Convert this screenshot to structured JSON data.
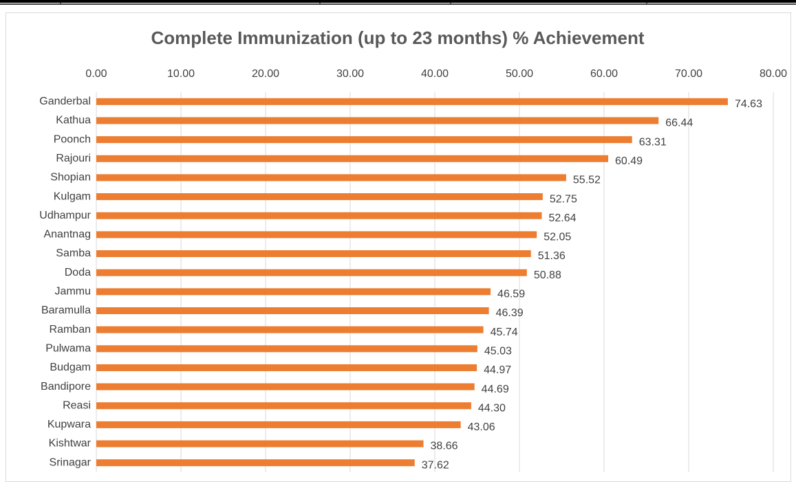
{
  "chart_data": {
    "type": "bar",
    "orientation": "horizontal",
    "title": "Complete Immunization  (up to 23 months) % Achievement",
    "categories": [
      "Ganderbal",
      "Kathua",
      "Poonch",
      "Rajouri",
      "Shopian",
      "Kulgam",
      "Udhampur",
      "Anantnag",
      "Samba",
      "Doda",
      "Jammu",
      "Baramulla",
      "Ramban",
      "Pulwama",
      "Budgam",
      "Bandipore",
      "Reasi",
      "Kupwara",
      "Kishtwar",
      "Srinagar"
    ],
    "values": [
      74.63,
      66.44,
      63.31,
      60.49,
      55.52,
      52.75,
      52.64,
      52.05,
      51.36,
      50.88,
      46.59,
      46.39,
      45.74,
      45.03,
      44.97,
      44.69,
      44.3,
      43.06,
      38.66,
      37.62
    ],
    "value_labels": [
      "74.63",
      "66.44",
      "63.31",
      "60.49",
      "55.52",
      "52.75",
      "52.64",
      "52.05",
      "51.36",
      "50.88",
      "46.59",
      "46.39",
      "45.74",
      "45.03",
      "44.97",
      "44.69",
      "44.30",
      "43.06",
      "38.66",
      "37.62"
    ],
    "color": "#ed7d31",
    "xlim": [
      0,
      80
    ],
    "xticks": [
      {
        "value": 0,
        "label": "0.00"
      },
      {
        "value": 10,
        "label": "10.00"
      },
      {
        "value": 20,
        "label": "20.00"
      },
      {
        "value": 30,
        "label": "30.00"
      },
      {
        "value": 40,
        "label": "40.00"
      },
      {
        "value": 50,
        "label": "50.00"
      },
      {
        "value": 60,
        "label": "60.00"
      },
      {
        "value": 70,
        "label": "70.00"
      },
      {
        "value": 80,
        "label": "80.00"
      }
    ],
    "grid": true
  }
}
